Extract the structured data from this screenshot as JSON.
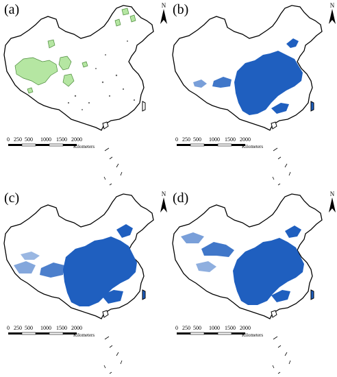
{
  "figure": {
    "panels": [
      {
        "id": "a",
        "label": "(a)",
        "layer": "green-patches"
      },
      {
        "id": "b",
        "label": "(b)",
        "layer": "blue-moderate"
      },
      {
        "id": "c",
        "label": "(c)",
        "layer": "blue-dense"
      },
      {
        "id": "d",
        "label": "(d)",
        "layer": "blue-extended"
      }
    ],
    "north_label": "N",
    "scale": {
      "ticks": [
        "0",
        "250",
        "500",
        "1000",
        "1500",
        "2000"
      ],
      "unit": "Kilometers"
    },
    "colors": {
      "boundary": "#000000",
      "green_fill": "#b5e6a2",
      "green_edge": "#4a8a3a",
      "blue_fill": "#1f5fbf"
    },
    "icons": [
      "north-arrow-icon",
      "scale-bar-icon"
    ]
  }
}
